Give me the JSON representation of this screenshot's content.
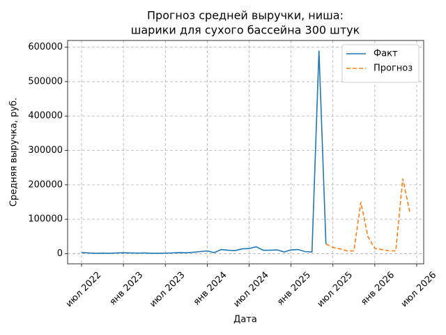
{
  "chart_data": {
    "type": "line",
    "title": "Прогноз средней выручки, ниша:",
    "subtitle": "шарики для сухого бассейна 300 штук",
    "x_label": "Дата",
    "y_label": "Средняя выручка, руб.",
    "x": [
      "2022-07",
      "2022-08",
      "2022-09",
      "2022-10",
      "2022-11",
      "2022-12",
      "2023-01",
      "2023-02",
      "2023-03",
      "2023-04",
      "2023-05",
      "2023-06",
      "2023-07",
      "2023-08",
      "2023-09",
      "2023-10",
      "2023-11",
      "2023-12",
      "2024-01",
      "2024-02",
      "2024-03",
      "2024-04",
      "2024-05",
      "2024-06",
      "2024-07",
      "2024-08",
      "2024-09",
      "2024-10",
      "2024-11",
      "2024-12",
      "2025-01",
      "2025-02",
      "2025-03",
      "2025-04",
      "2025-05",
      "2025-06",
      "2025-07",
      "2025-08",
      "2025-09",
      "2025-10",
      "2025-11",
      "2025-12",
      "2026-01",
      "2026-02",
      "2026-03",
      "2026-04",
      "2026-05",
      "2026-06"
    ],
    "series": [
      {
        "name": "Факт",
        "color": "#1f77b4",
        "dash": false,
        "values": [
          3000,
          2000,
          1000,
          1500,
          1000,
          2000,
          2500,
          2000,
          1500,
          2000,
          1000,
          1000,
          1500,
          2000,
          3000,
          2500,
          4000,
          6000,
          8000,
          3000,
          12000,
          10000,
          9000,
          14000,
          15000,
          20000,
          10000,
          10000,
          11000,
          5000,
          11000,
          12000,
          6000,
          5000,
          590000,
          28000,
          null,
          null,
          null,
          null,
          null,
          null,
          null,
          null,
          null,
          null,
          null,
          null
        ]
      },
      {
        "name": "Прогноз",
        "color": "#ff7f0e",
        "dash": true,
        "values": [
          null,
          null,
          null,
          null,
          null,
          null,
          null,
          null,
          null,
          null,
          null,
          null,
          null,
          null,
          null,
          null,
          null,
          null,
          null,
          null,
          null,
          null,
          null,
          null,
          null,
          null,
          null,
          null,
          null,
          null,
          null,
          null,
          null,
          null,
          null,
          28000,
          18000,
          14000,
          8000,
          8000,
          150000,
          50000,
          15000,
          12000,
          8000,
          8000,
          218000,
          122000
        ]
      }
    ],
    "xlim": [
      "2022-05",
      "2026-08"
    ],
    "xticks": [
      {
        "value": "2022-07",
        "label": "июл 2022"
      },
      {
        "value": "2023-01",
        "label": "янв 2023"
      },
      {
        "value": "2023-07",
        "label": "июл 2023"
      },
      {
        "value": "2024-01",
        "label": "янв 2024"
      },
      {
        "value": "2024-07",
        "label": "июл 2024"
      },
      {
        "value": "2025-01",
        "label": "янв 2025"
      },
      {
        "value": "2025-07",
        "label": "июл 2025"
      },
      {
        "value": "2026-01",
        "label": "янв 2026"
      },
      {
        "value": "2026-07",
        "label": "июл 2026"
      }
    ],
    "ylim": [
      -29500,
      619500
    ],
    "yticks": [
      0,
      100000,
      200000,
      300000,
      400000,
      500000,
      600000
    ],
    "grid": true,
    "legend": "upper-right"
  }
}
